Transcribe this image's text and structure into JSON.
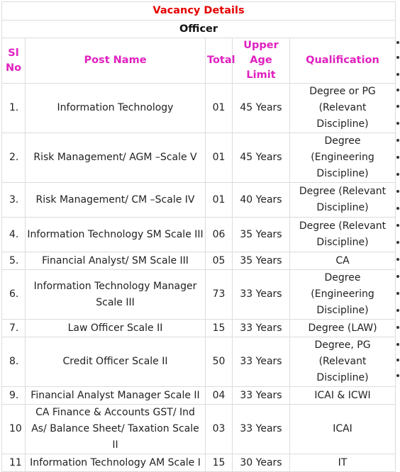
{
  "title": "Vacancy Details",
  "category": "Officer",
  "headers": {
    "sl": "Sl No",
    "post": "Post Name",
    "total": "Total",
    "age": "Upper Age Limit",
    "qual": "Qualification"
  },
  "rows": [
    {
      "sl": "1.",
      "post": "Information Technology",
      "total": "01",
      "age": "45 Years",
      "qual": "Degree or PG (Relevant Discipline)"
    },
    {
      "sl": "2.",
      "post": "Risk Management/ AGM –Scale V",
      "total": "01",
      "age": "45 Years",
      "qual": "Degree (Engineering Discipline)"
    },
    {
      "sl": "3.",
      "post": "Risk Management/ CM –Scale IV",
      "total": "01",
      "age": "40 Years",
      "qual": "Degree (Relevant Discipline)"
    },
    {
      "sl": "4.",
      "post": "Information Technology SM Scale III",
      "total": "06",
      "age": "35 Years",
      "qual": "Degree (Relevant Discipline)"
    },
    {
      "sl": "5.",
      "post": "Financial Analyst/ SM Scale III",
      "total": "05",
      "age": "35 Years",
      "qual": "CA"
    },
    {
      "sl": "6.",
      "post": "Information Technology Manager Scale III",
      "total": "73",
      "age": "33 Years",
      "qual": "Degree (Engineering Discipline)"
    },
    {
      "sl": "7.",
      "post": "Law Officer Scale II",
      "total": "15",
      "age": "33 Years",
      "qual": "Degree (LAW)"
    },
    {
      "sl": "8.",
      "post": "Credit Officer Scale II",
      "total": "50",
      "age": "33 Years",
      "qual": "Degree, PG (Relevant Discipline)"
    },
    {
      "sl": "9.",
      "post": "Financial Analyst Manager Scale II",
      "total": "04",
      "age": "33 Years",
      "qual": "ICAI & ICWI"
    },
    {
      "sl": "10",
      "post": "CA Finance & Accounts GST/ Ind As/ Balance Sheet/ Taxation Scale II",
      "total": "03",
      "age": "33 Years",
      "qual": "ICAI"
    },
    {
      "sl": "11",
      "post": "Information Technology AM Scale I",
      "total": "15",
      "age": "30 Years",
      "qual": "IT"
    }
  ]
}
